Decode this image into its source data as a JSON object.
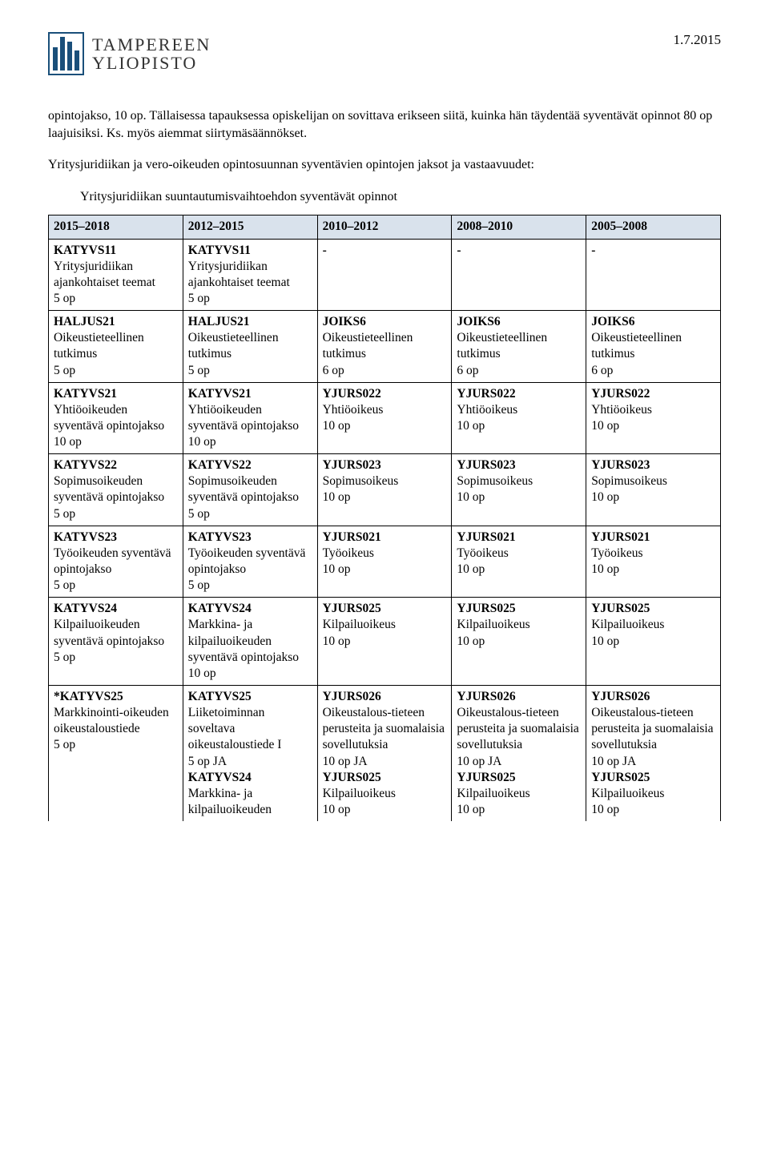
{
  "header": {
    "org_line1": "TAMPEREEN",
    "org_line2": "YLIOPISTO",
    "date": "1.7.2015"
  },
  "paragraph": "opintojakso, 10 op. Tällaisessa tapauksessa opiskelijan on sovittava erikseen siitä, kuinka hän täydentää syventävät opinnot 80 op laajuisiksi. Ks. myös aiemmat siirtymäsäännökset.",
  "section_intro": "Yritysjuridiikan ja vero-oikeuden opintosuunnan syventävien opintojen jaksot ja vastaavuudet:",
  "sub_intro": "Yritysjuridiikan suuntautumisvaihtoehdon syventävät opinnot",
  "table": {
    "headers": [
      "2015–2018",
      "2012–2015",
      "2010–2012",
      "2008–2010",
      "2005–2008"
    ],
    "rows": [
      [
        {
          "code": "KATYVS11",
          "text": "Yritysjuridiikan ajankohtaiset teemat\n5 op"
        },
        {
          "code": "KATYVS11",
          "text": "Yritysjuridiikan ajankohtaiset teemat\n5 op"
        },
        {
          "code": "-",
          "text": ""
        },
        {
          "code": "-",
          "text": ""
        },
        {
          "code": "-",
          "text": ""
        }
      ],
      [
        {
          "code": "HALJUS21",
          "text": "Oikeustieteellinen tutkimus\n5 op"
        },
        {
          "code": "HALJUS21",
          "text": "Oikeustieteellinen tutkimus\n5 op"
        },
        {
          "code": "JOIKS6",
          "text": "Oikeustieteellinen tutkimus\n6 op"
        },
        {
          "code": "JOIKS6",
          "text": "Oikeustieteellinen tutkimus\n6 op"
        },
        {
          "code": "JOIKS6",
          "text": "Oikeustieteellinen tutkimus\n6 op"
        }
      ],
      [
        {
          "code": "KATYVS21",
          "text": "Yhtiöoikeuden syventävä opintojakso\n10 op"
        },
        {
          "code": "KATYVS21",
          "text": "Yhtiöoikeuden syventävä opintojakso\n10 op"
        },
        {
          "code": "YJURS022",
          "text": "Yhtiöoikeus\n10 op"
        },
        {
          "code": "YJURS022",
          "text": "Yhtiöoikeus\n10 op"
        },
        {
          "code": "YJURS022",
          "text": "Yhtiöoikeus\n10 op"
        }
      ],
      [
        {
          "code": "KATYVS22",
          "text": "Sopimusoikeuden syventävä opintojakso\n5 op"
        },
        {
          "code": "KATYVS22",
          "text": "Sopimusoikeuden syventävä opintojakso\n5 op"
        },
        {
          "code": "YJURS023",
          "text": "Sopimusoikeus\n10 op"
        },
        {
          "code": "YJURS023",
          "text": "Sopimusoikeus\n10 op"
        },
        {
          "code": "YJURS023",
          "text": "Sopimusoikeus\n10 op"
        }
      ],
      [
        {
          "code": "KATYVS23",
          "text": "Työoikeuden syventävä opintojakso\n5 op"
        },
        {
          "code": "KATYVS23",
          "text": "Työoikeuden syventävä opintojakso\n5 op"
        },
        {
          "code": "YJURS021",
          "text": "Työoikeus\n10 op"
        },
        {
          "code": "YJURS021",
          "text": "Työoikeus\n10 op"
        },
        {
          "code": "YJURS021",
          "text": "Työoikeus\n10 op"
        }
      ],
      [
        {
          "code": "KATYVS24",
          "text": "Kilpailuoikeuden syventävä opintojakso\n5 op"
        },
        {
          "code": "KATYVS24",
          "text": "Markkina- ja kilpailuoikeuden syventävä opintojakso\n10 op"
        },
        {
          "code": "YJURS025",
          "text": "Kilpailuoikeus\n10 op"
        },
        {
          "code": "YJURS025",
          "text": "Kilpailuoikeus\n10 op"
        },
        {
          "code": "YJURS025",
          "text": "Kilpailuoikeus\n10 op"
        }
      ],
      [
        {
          "code": "*KATYVS25",
          "text": "Markkinointi-oikeuden oikeustaloustiede\n5 op"
        },
        {
          "code": "KATYVS25",
          "text": "Liiketoiminnan soveltava oikeustaloustiede I\n5 op JA",
          "code2": "KATYVS24",
          "text2": "Markkina- ja kilpailuoikeuden"
        },
        {
          "code": "YJURS026",
          "text": "Oikeustalous-tieteen perusteita ja suomalaisia sovellutuksia\n10 op JA",
          "code2": "YJURS025",
          "text2": "Kilpailuoikeus\n10 op"
        },
        {
          "code": "YJURS026",
          "text": "Oikeustalous-tieteen perusteita ja suomalaisia sovellutuksia\n10 op JA",
          "code2": "YJURS025",
          "text2": "Kilpailuoikeus\n10 op"
        },
        {
          "code": "YJURS026",
          "text": "Oikeustalous-tieteen perusteita ja suomalaisia sovellutuksia\n10 op JA",
          "code2": "YJURS025",
          "text2": "Kilpailuoikeus\n10 op"
        }
      ]
    ],
    "header_bg": "#d9e2ec"
  }
}
